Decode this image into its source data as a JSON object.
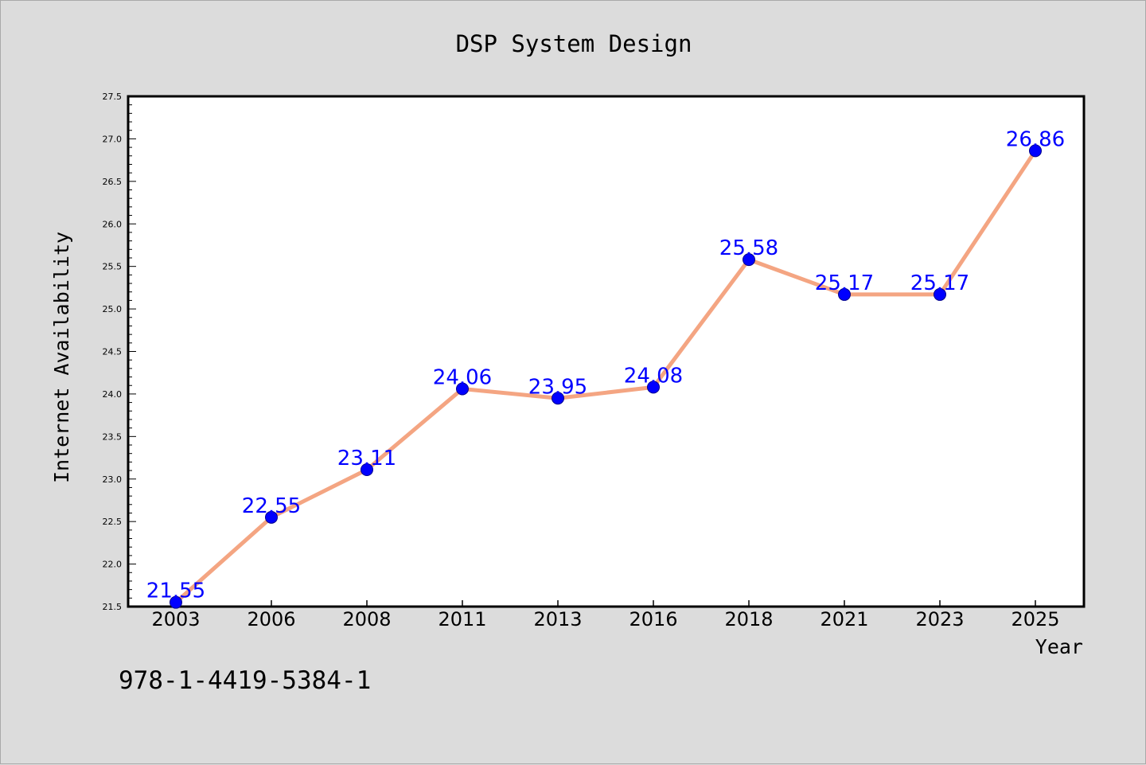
{
  "footnote": "978-1-4419-5384-1",
  "colors": {
    "background": "#dcdcdc",
    "plot_background": "#ffffff",
    "line": "#f4a582",
    "marker": "#0000ff",
    "data_label": "#0000ff"
  },
  "chart_data": {
    "type": "line",
    "title": "DSP System Design",
    "xlabel": "Year",
    "ylabel": "Internet Availability",
    "categories": [
      "2003",
      "2006",
      "2008",
      "2011",
      "2013",
      "2016",
      "2018",
      "2021",
      "2023",
      "2025"
    ],
    "series": [
      {
        "values": [
          21.55,
          22.55,
          23.11,
          24.06,
          23.95,
          24.08,
          25.58,
          25.17,
          25.17,
          26.86
        ],
        "data_labels": [
          "21.55",
          "22.55",
          "23.11",
          "24.06",
          "23.95",
          "24.08",
          "25.58",
          "25.17",
          "25.17",
          "26.86"
        ]
      }
    ],
    "ylim": [
      21.5,
      27.5
    ],
    "yticks": [
      "21.5",
      "22.0",
      "22.5",
      "23.0",
      "23.5",
      "24.0",
      "24.5",
      "25.0",
      "25.5",
      "26.0",
      "26.5",
      "27.0",
      "27.5"
    ],
    "y_minor_step": 0.1,
    "grid": false,
    "legend": "none"
  }
}
